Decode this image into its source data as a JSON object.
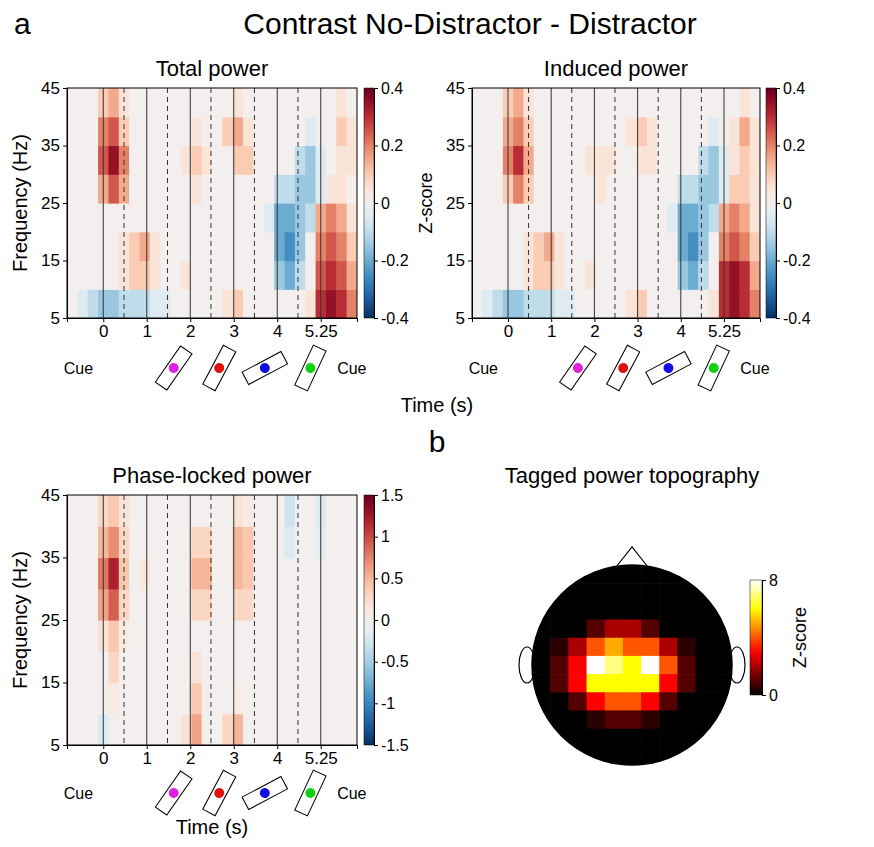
{
  "title": "Contrast No-Distractor - Distractor",
  "chart_data": [
    {
      "type": "heatmap",
      "panel": "a",
      "title": "Total power",
      "ylabel": "Frequency (Hz)",
      "xlabel": "Time (s)",
      "x": [
        -0.75,
        -0.5,
        -0.25,
        0,
        0.25,
        0.5,
        0.75,
        1,
        1.25,
        1.5,
        1.75,
        2,
        2.25,
        2.5,
        2.75,
        3,
        3.25,
        3.5,
        3.75,
        4,
        4.25,
        4.5,
        4.75,
        5,
        5.25,
        5.5,
        5.75,
        6
      ],
      "y": [
        7.5,
        12.5,
        17.5,
        22.5,
        27.5,
        32.5,
        37.5,
        42.5
      ],
      "z": [
        [
          0,
          -0.05,
          -0.1,
          -0.15,
          -0.15,
          -0.1,
          -0.1,
          -0.1,
          -0.05,
          -0.05,
          0,
          0,
          0,
          0,
          0,
          0.05,
          0.1,
          0,
          0,
          0,
          0,
          0,
          0,
          0.05,
          0.3,
          0.35,
          0.3,
          0.2
        ],
        [
          0,
          0,
          0,
          0,
          0,
          0.05,
          0.1,
          0.1,
          0.05,
          0,
          0,
          0.05,
          0,
          0,
          0,
          0,
          0,
          0,
          0,
          0,
          -0.15,
          -0.2,
          -0.1,
          0,
          0.25,
          0.3,
          0.25,
          0.15
        ],
        [
          0,
          0,
          0,
          0,
          0,
          0.05,
          0.1,
          0.15,
          0.05,
          0,
          0,
          0,
          0,
          0,
          0,
          0,
          0,
          0,
          0,
          0,
          -0.2,
          -0.25,
          -0.15,
          0,
          0.2,
          0.25,
          0.2,
          0.1
        ],
        [
          0,
          0,
          0,
          0,
          0,
          0,
          0,
          0,
          0,
          0,
          0,
          0,
          0,
          0,
          0,
          0,
          0,
          0,
          0,
          -0.05,
          -0.2,
          -0.2,
          -0.15,
          -0.1,
          0.15,
          0.2,
          0.15,
          0.05
        ],
        [
          0,
          0,
          0,
          0.15,
          0.25,
          0.15,
          0,
          0,
          0,
          0,
          0,
          0,
          0.05,
          0,
          0,
          0,
          0,
          0,
          0,
          0,
          -0.1,
          -0.1,
          -0.15,
          -0.15,
          -0.05,
          0.05,
          0.05,
          0
        ],
        [
          0,
          0,
          0,
          0.25,
          0.35,
          0.2,
          0,
          0,
          0,
          0,
          0,
          0.05,
          0.1,
          0.05,
          0,
          0,
          0.1,
          0.1,
          0,
          0,
          0,
          0,
          -0.1,
          -0.15,
          -0.05,
          0,
          0.05,
          0.05
        ],
        [
          0,
          0,
          0,
          0.2,
          0.25,
          0.1,
          0,
          0,
          0,
          0,
          0,
          0,
          0.05,
          0,
          0,
          0.1,
          0.15,
          0.05,
          0,
          0,
          0,
          0,
          0,
          -0.05,
          0,
          0,
          0.1,
          0.05
        ],
        [
          0,
          0,
          0,
          0.1,
          0.15,
          0.05,
          0,
          0,
          0,
          0,
          0,
          0,
          0,
          0,
          0,
          0,
          0.05,
          0,
          0,
          0,
          0,
          0,
          0,
          0,
          0,
          0,
          0.05,
          0
        ]
      ],
      "xlim": [
        -0.875,
        6.125
      ],
      "ylim": [
        5,
        45
      ],
      "xticks": [
        0,
        {
          "value": 1.05,
          "label": "1"
        },
        {
          "value": 2.1,
          "label": "2"
        },
        {
          "value": 3.15,
          "label": "3"
        },
        {
          "value": 4.2,
          "label": "4"
        },
        5.25
      ],
      "yticks": [
        5,
        15,
        25,
        35,
        45
      ],
      "colorbar": {
        "range": [
          -0.4,
          0.4
        ],
        "ticks": [
          -0.4,
          -0.2,
          0,
          0.2,
          0.4
        ],
        "label": "Z-score"
      },
      "events": {
        "onsets": [
          0,
          1.05,
          2.1,
          3.15,
          4.2,
          5.25
        ],
        "offsets": [
          0.5,
          1.55,
          2.6,
          3.65,
          4.7
        ]
      },
      "stimuli": [
        {
          "time": 1.7,
          "color": "#e020e0"
        },
        {
          "time": 2.8,
          "color": "#e01010"
        },
        {
          "time": 3.9,
          "color": "#1010e0"
        },
        {
          "time": 5.0,
          "color": "#10d010"
        }
      ],
      "cues": [
        {
          "time": -0.6,
          "label": "Cue"
        },
        {
          "time": 6.0,
          "label": "Cue"
        }
      ]
    },
    {
      "type": "heatmap",
      "title": "Induced power",
      "x": [
        -0.75,
        -0.5,
        -0.25,
        0,
        0.25,
        0.5,
        0.75,
        1,
        1.25,
        1.5,
        1.75,
        2,
        2.25,
        2.5,
        2.75,
        3,
        3.25,
        3.5,
        3.75,
        4,
        4.25,
        4.5,
        4.75,
        5,
        5.25,
        5.5,
        5.75,
        6
      ],
      "y": [
        7.5,
        12.5,
        17.5,
        22.5,
        27.5,
        32.5,
        37.5,
        42.5
      ],
      "z": [
        [
          0,
          -0.05,
          -0.1,
          -0.15,
          -0.15,
          -0.1,
          -0.1,
          -0.1,
          -0.05,
          -0.05,
          0,
          0,
          0,
          0,
          0,
          0.05,
          0.1,
          0,
          0,
          0,
          0,
          0,
          0,
          0.05,
          0.3,
          0.35,
          0.3,
          0.2
        ],
        [
          0,
          0,
          0,
          0,
          0,
          0.05,
          0.1,
          0.1,
          0.05,
          0,
          0,
          0.05,
          0,
          0,
          0,
          0,
          0,
          0,
          0,
          0,
          -0.15,
          -0.2,
          -0.1,
          0,
          0.3,
          0.35,
          0.3,
          0.15
        ],
        [
          0,
          0,
          0,
          0,
          0,
          0.05,
          0.1,
          0.15,
          0.05,
          0,
          0,
          0,
          0,
          0,
          0,
          0,
          0,
          0,
          0,
          0,
          -0.2,
          -0.25,
          -0.15,
          0,
          0.2,
          0.25,
          0.2,
          0.1
        ],
        [
          0,
          0,
          0,
          0,
          0,
          0,
          0,
          0,
          0,
          0,
          0,
          0,
          0,
          0,
          0,
          0,
          0,
          0,
          0,
          -0.05,
          -0.2,
          -0.2,
          -0.15,
          -0.1,
          0.15,
          0.2,
          0.15,
          0.05
        ],
        [
          0,
          0,
          0,
          0.1,
          0.2,
          0.1,
          0,
          0,
          0,
          0,
          0,
          0,
          0.05,
          0,
          0,
          0,
          0,
          0,
          0,
          0,
          -0.1,
          -0.1,
          -0.15,
          -0.15,
          -0.05,
          0.1,
          0.1,
          0.05
        ],
        [
          0,
          0,
          0,
          0.2,
          0.3,
          0.15,
          0,
          0,
          0,
          0,
          0,
          0.05,
          0.05,
          0.05,
          0,
          0,
          0.05,
          0.05,
          0,
          0,
          0,
          0,
          -0.1,
          -0.15,
          -0.05,
          0.05,
          0.1,
          0.05
        ],
        [
          0,
          0,
          0,
          0.15,
          0.2,
          0.1,
          0,
          0,
          0,
          0,
          0,
          0,
          0,
          0,
          0,
          0.05,
          0.1,
          0.05,
          0,
          0,
          0,
          0,
          0,
          -0.05,
          0,
          0.05,
          0.15,
          0.05
        ],
        [
          0,
          0,
          0,
          0.1,
          0.15,
          0.05,
          0,
          0,
          0,
          0,
          0,
          0,
          0,
          0,
          0,
          0,
          0,
          0,
          0,
          0,
          0,
          0,
          0,
          0,
          0,
          0,
          0.05,
          0
        ]
      ],
      "xlim": [
        -0.875,
        6.125
      ],
      "ylim": [
        5,
        45
      ],
      "xticks": [
        0,
        {
          "value": 1.05,
          "label": "1"
        },
        {
          "value": 2.1,
          "label": "2"
        },
        {
          "value": 3.15,
          "label": "3"
        },
        {
          "value": 4.2,
          "label": "4"
        },
        5.25
      ],
      "yticks": [
        5,
        15,
        25,
        35,
        45
      ],
      "colorbar": {
        "range": [
          -0.4,
          0.4
        ],
        "ticks": [
          -0.4,
          -0.2,
          0,
          0.2,
          0.4
        ]
      },
      "events": {
        "onsets": [
          0,
          1.05,
          2.1,
          3.15,
          4.2,
          5.25
        ],
        "offsets": [
          0.5,
          1.55,
          2.6,
          3.65,
          4.7
        ]
      },
      "stimuli": [
        {
          "time": 1.7,
          "color": "#e020e0"
        },
        {
          "time": 2.8,
          "color": "#e01010"
        },
        {
          "time": 3.9,
          "color": "#1010e0"
        },
        {
          "time": 5.0,
          "color": "#10d010"
        }
      ],
      "cues": [
        {
          "time": -0.6,
          "label": "Cue"
        },
        {
          "time": 6.0,
          "label": "Cue"
        }
      ]
    },
    {
      "type": "heatmap",
      "title": "Phase-locked power",
      "ylabel": "Frequency (Hz)",
      "xlabel": "Time (s)",
      "x": [
        -0.75,
        -0.5,
        -0.25,
        0,
        0.25,
        0.5,
        0.75,
        1,
        1.25,
        1.5,
        1.75,
        2,
        2.25,
        2.5,
        2.75,
        3,
        3.25,
        3.5,
        3.75,
        4,
        4.25,
        4.5,
        4.75,
        5,
        5.25,
        5.5,
        5.75,
        6
      ],
      "y": [
        7.5,
        12.5,
        17.5,
        22.5,
        27.5,
        32.5,
        37.5,
        42.5
      ],
      "z": [
        [
          0,
          0,
          0,
          -0.2,
          0,
          0,
          0,
          0,
          0,
          0,
          0,
          0.2,
          0.6,
          0,
          0,
          0.3,
          0.5,
          0,
          0,
          0,
          0,
          0,
          0,
          0,
          0,
          0,
          0,
          0
        ],
        [
          0,
          0,
          0,
          0,
          0.1,
          0,
          0,
          0,
          0,
          0,
          0,
          0,
          0.4,
          0,
          0,
          0,
          0.1,
          0,
          0,
          0,
          0,
          0,
          0,
          0,
          0,
          0,
          0,
          0
        ],
        [
          0,
          0,
          0,
          0,
          0.3,
          0,
          0,
          0,
          0,
          0,
          0,
          0,
          0.2,
          0,
          0,
          0,
          0,
          0,
          0,
          0,
          0,
          0,
          0,
          0,
          0,
          0,
          0,
          0
        ],
        [
          0,
          0,
          0,
          0.2,
          0.4,
          0.1,
          0,
          0,
          0,
          0,
          0,
          0,
          0,
          0,
          0,
          0,
          0,
          0,
          0,
          0,
          0,
          0,
          0,
          0,
          0,
          0,
          0,
          0
        ],
        [
          0,
          0,
          0,
          0.6,
          0.9,
          0.3,
          0,
          0,
          0,
          0,
          0,
          0,
          0.3,
          0.3,
          0,
          0,
          0.3,
          0.3,
          0,
          0,
          0,
          0,
          0,
          0,
          0,
          0,
          0,
          0
        ],
        [
          0,
          0,
          0,
          0.8,
          1.2,
          0.4,
          0,
          0.15,
          0,
          0,
          0,
          0,
          0.5,
          0.5,
          0,
          0,
          0.5,
          0.4,
          0,
          0,
          0,
          0,
          0,
          0,
          0,
          0,
          0,
          0
        ],
        [
          0,
          0,
          0,
          0.5,
          0.7,
          0.3,
          0,
          0,
          0,
          0,
          0,
          0,
          0.3,
          0.3,
          0,
          0,
          0.5,
          0.4,
          0,
          0,
          0,
          -0.2,
          0,
          0,
          -0.15,
          0,
          0,
          0
        ],
        [
          0,
          0,
          0,
          0.3,
          0.4,
          0.2,
          0,
          0,
          0,
          0,
          0,
          0,
          0,
          0,
          0,
          0,
          0.2,
          0.1,
          0,
          0,
          0,
          -0.3,
          0,
          0,
          -0.2,
          0,
          0,
          0
        ]
      ],
      "xlim": [
        -0.875,
        6.125
      ],
      "ylim": [
        5,
        45
      ],
      "xticks": [
        0,
        {
          "value": 1.05,
          "label": "1"
        },
        {
          "value": 2.1,
          "label": "2"
        },
        {
          "value": 3.15,
          "label": "3"
        },
        {
          "value": 4.2,
          "label": "4"
        },
        5.25
      ],
      "yticks": [
        5,
        15,
        25,
        35,
        45
      ],
      "colorbar": {
        "range": [
          -1.5,
          1.5
        ],
        "ticks": [
          -1.5,
          -1,
          -0.5,
          0,
          0.5,
          1,
          1.5
        ]
      },
      "events": {
        "onsets": [
          0,
          1.05,
          2.1,
          3.15,
          4.2,
          5.25
        ],
        "offsets": [
          0.5,
          1.55,
          2.6,
          3.65,
          4.7
        ]
      },
      "stimuli": [
        {
          "time": 1.7,
          "color": "#e020e0"
        },
        {
          "time": 2.8,
          "color": "#e01010"
        },
        {
          "time": 3.9,
          "color": "#1010e0"
        },
        {
          "time": 5.0,
          "color": "#10d010"
        }
      ],
      "cues": [
        {
          "time": -0.6,
          "label": "Cue"
        },
        {
          "time": 6.0,
          "label": "Cue"
        }
      ]
    },
    {
      "type": "topography",
      "panel": "b",
      "title": "Tagged power topography",
      "z": [
        [
          0,
          0,
          0,
          0,
          0,
          0,
          0,
          0,
          0,
          0,
          0
        ],
        [
          0,
          0,
          0,
          0,
          0,
          0,
          0,
          0,
          0,
          0,
          0
        ],
        [
          0,
          0,
          0,
          0,
          0,
          0,
          0,
          0,
          0,
          0,
          0
        ],
        [
          0,
          0,
          0,
          1,
          2,
          2,
          1,
          0,
          0,
          0,
          0
        ],
        [
          0,
          0.5,
          2,
          4,
          5,
          4,
          4,
          2,
          0.5,
          0,
          0
        ],
        [
          0,
          1,
          3,
          8,
          7,
          6,
          8,
          4,
          1,
          0,
          0
        ],
        [
          0,
          1,
          3,
          6,
          6,
          6,
          6,
          3,
          1,
          0,
          0
        ],
        [
          0,
          0,
          1,
          3,
          4,
          4,
          3,
          1,
          0,
          0,
          0
        ],
        [
          0,
          0,
          0,
          0.5,
          1,
          1,
          0.5,
          0,
          0,
          0,
          0
        ],
        [
          0,
          0,
          0,
          0,
          0,
          0,
          0,
          0,
          0,
          0,
          0
        ],
        [
          0,
          0,
          0,
          0,
          0,
          0,
          0,
          0,
          0,
          0,
          0
        ]
      ],
      "colorbar": {
        "range": [
          0,
          8
        ],
        "ticks": [
          0,
          8
        ],
        "label": "Z-score"
      }
    }
  ]
}
